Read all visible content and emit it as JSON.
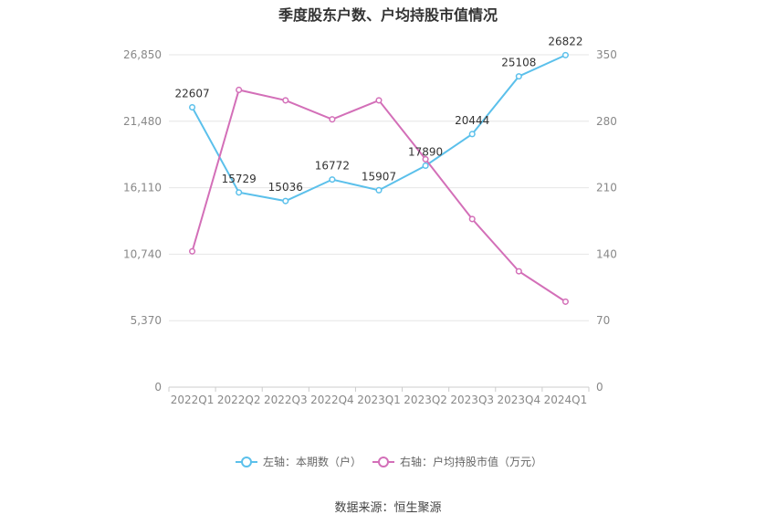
{
  "title": "季度股东户数、户均持股市值情况",
  "source": "数据来源：恒生聚源",
  "chart_data": {
    "type": "line",
    "categories": [
      "2022Q1",
      "2022Q2",
      "2022Q3",
      "2022Q4",
      "2023Q1",
      "2023Q2",
      "2023Q3",
      "2023Q4",
      "2024Q1"
    ],
    "y_left": {
      "min": 0,
      "max": 26850,
      "ticks": [
        "0",
        "5,370",
        "10,740",
        "16,110",
        "21,480",
        "26,850"
      ]
    },
    "y_right": {
      "min": 0,
      "max": 350,
      "ticks": [
        "0",
        "70",
        "140",
        "210",
        "280",
        "350"
      ]
    },
    "grid": true,
    "legend_position": "bottom",
    "series": [
      {
        "name": "左轴：本期数（户）",
        "axis": "left",
        "color": "#5bc0eb",
        "values": [
          22607,
          15729,
          15036,
          16772,
          15907,
          17890,
          20444,
          25108,
          26822
        ],
        "labels": [
          "22607",
          "15729",
          "15036",
          "16772",
          "15907",
          "17890",
          "20444",
          "25108",
          "26822"
        ]
      },
      {
        "name": "右轴：户均持股市值（万元）",
        "axis": "right",
        "color": "#d36fb8",
        "values": [
          143,
          313,
          302,
          282,
          302,
          240,
          177,
          122,
          90
        ]
      }
    ]
  }
}
